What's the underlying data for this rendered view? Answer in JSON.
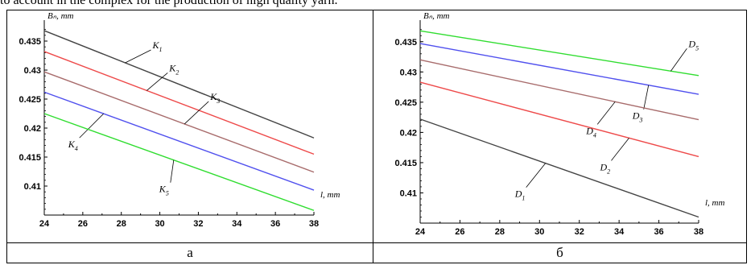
{
  "top_caption": "to account in the complex for the production of high quality yarn.",
  "panels": {
    "left_label": "а",
    "right_label": "б"
  },
  "chart_data": [
    {
      "type": "line",
      "panel": "а",
      "xlabel": "l, mm",
      "ylabel": "Bₙ, mm",
      "xlim": [
        24,
        38
      ],
      "ylim": [
        0.405,
        0.4375
      ],
      "x_ticks": [
        "24",
        "26",
        "28",
        "30",
        "32",
        "34",
        "36",
        "38"
      ],
      "y_ticks": [
        "0.41",
        "0.415",
        "0.42",
        "0.425",
        "0.43",
        "0.435"
      ],
      "grid": false,
      "x": [
        24,
        38
      ],
      "series": [
        {
          "name": "K1",
          "base": "K",
          "sub": "1",
          "color": "#444444",
          "values": [
            0.4368,
            0.4183
          ],
          "label_dx": 32,
          "label_dy": -16
        },
        {
          "name": "K2",
          "base": "K",
          "sub": "2",
          "color": "#ee4a4a",
          "values": [
            0.4332,
            0.4155
          ],
          "label_dx": 26,
          "label_dy": -22
        },
        {
          "name": "K3",
          "base": "K",
          "sub": "3",
          "color": "#a86c6c",
          "values": [
            0.4297,
            0.4124
          ],
          "label_dx": 30,
          "label_dy": -28
        },
        {
          "name": "K4",
          "base": "K",
          "sub": "4",
          "color": "#5050ee",
          "values": [
            0.4262,
            0.4093
          ],
          "label_dx": -30,
          "label_dy": 30
        },
        {
          "name": "K5",
          "base": "K",
          "sub": "5",
          "color": "#30dd30",
          "values": [
            0.4225,
            0.4058
          ],
          "label_dx": -4,
          "label_dy": 28
        }
      ]
    },
    {
      "type": "line",
      "panel": "б",
      "xlabel": "l, mm",
      "ylabel": "Bₙ, mm",
      "xlim": [
        24,
        38
      ],
      "ylim": [
        0.405,
        0.4375
      ],
      "x_ticks": [
        "24",
        "26",
        "28",
        "30",
        "32",
        "34",
        "36",
        "38"
      ],
      "y_ticks": [
        "0.41",
        "0.415",
        "0.42",
        "0.425",
        "0.43",
        "0.435"
      ],
      "grid": false,
      "x": [
        24,
        38
      ],
      "series": [
        {
          "name": "D5",
          "base": "D",
          "sub": "5",
          "color": "#30dd30",
          "values": [
            0.4368,
            0.4294
          ],
          "label_dx": 20,
          "label_dy": -28
        },
        {
          "name": "D3",
          "base": "D",
          "sub": "3",
          "color": "#5050ee",
          "values": [
            0.4347,
            0.4263
          ],
          "label_dx": -6,
          "label_dy": 30
        },
        {
          "name": "D4",
          "base": "D",
          "sub": "4",
          "color": "#a86c6c",
          "values": [
            0.432,
            0.4221
          ],
          "label_dx": -22,
          "label_dy": 28
        },
        {
          "name": "D2",
          "base": "D",
          "sub": "2",
          "color": "#ee4a4a",
          "values": [
            0.4283,
            0.416
          ],
          "label_dx": -22,
          "label_dy": 28
        },
        {
          "name": "D1",
          "base": "D",
          "sub": "1",
          "color": "#444444",
          "values": [
            0.4222,
            0.406
          ],
          "label_dx": -24,
          "label_dy": 30
        }
      ]
    }
  ]
}
